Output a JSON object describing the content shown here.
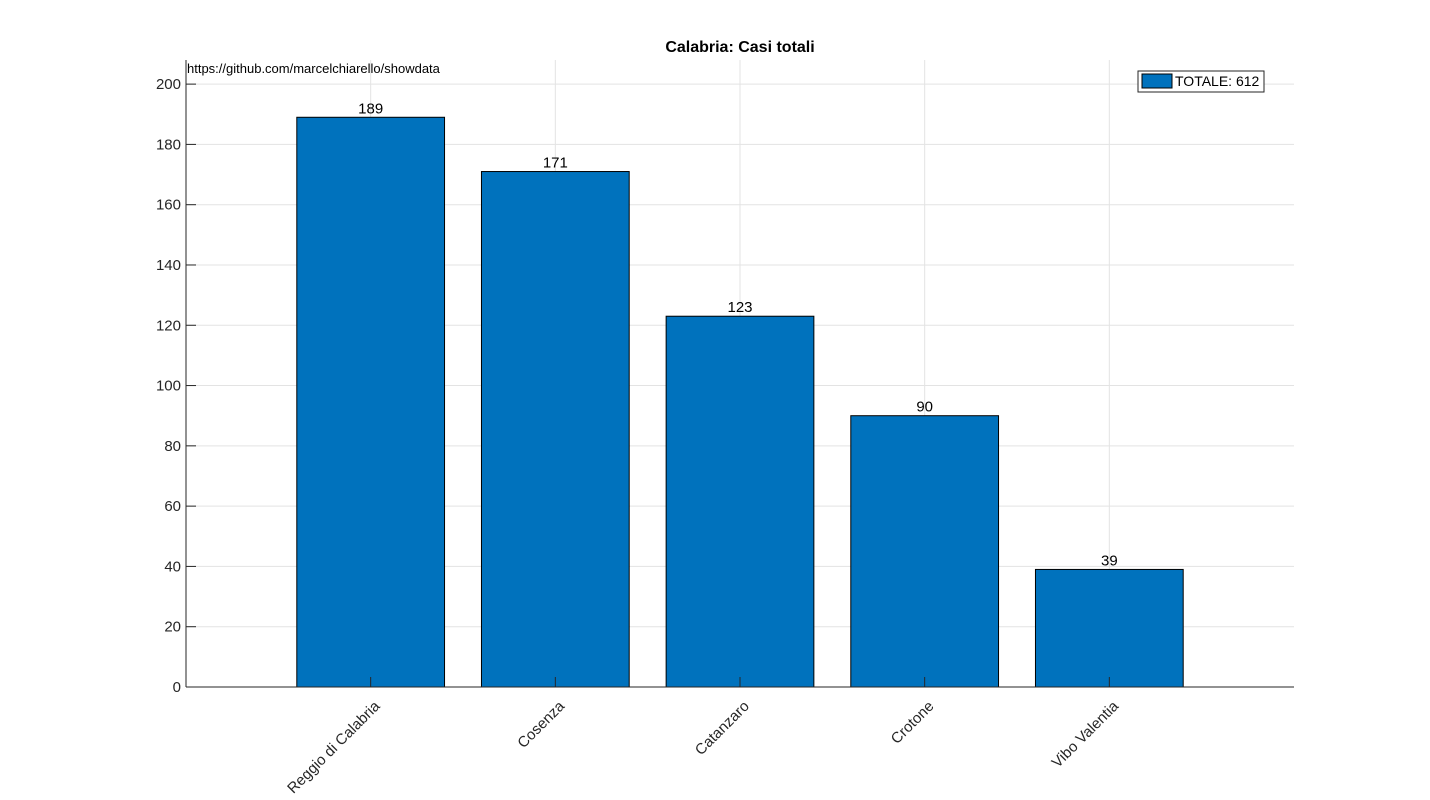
{
  "chart_data": {
    "type": "bar",
    "title": "Calabria: Casi totali",
    "annotation": "https://github.com/marcelchiarello/showdata",
    "categories": [
      "Reggio di Calabria",
      "Cosenza",
      "Catanzaro",
      "Crotone",
      "Vibo Valentia"
    ],
    "values": [
      189,
      171,
      123,
      90,
      39
    ],
    "bar_labels": [
      "189",
      "171",
      "123",
      "90",
      "39"
    ],
    "series": [
      {
        "name": "TOTALE: 612",
        "values": [
          189,
          171,
          123,
          90,
          39
        ]
      }
    ],
    "legend": {
      "label": "TOTALE: 612",
      "placement": "top-right"
    },
    "ylim": [
      0,
      208
    ],
    "yticks": [
      0,
      20,
      40,
      60,
      80,
      100,
      120,
      140,
      160,
      180,
      200
    ],
    "xlabel": "",
    "ylabel": "",
    "grid": true,
    "colors": {
      "bar": "#0072BD"
    }
  }
}
